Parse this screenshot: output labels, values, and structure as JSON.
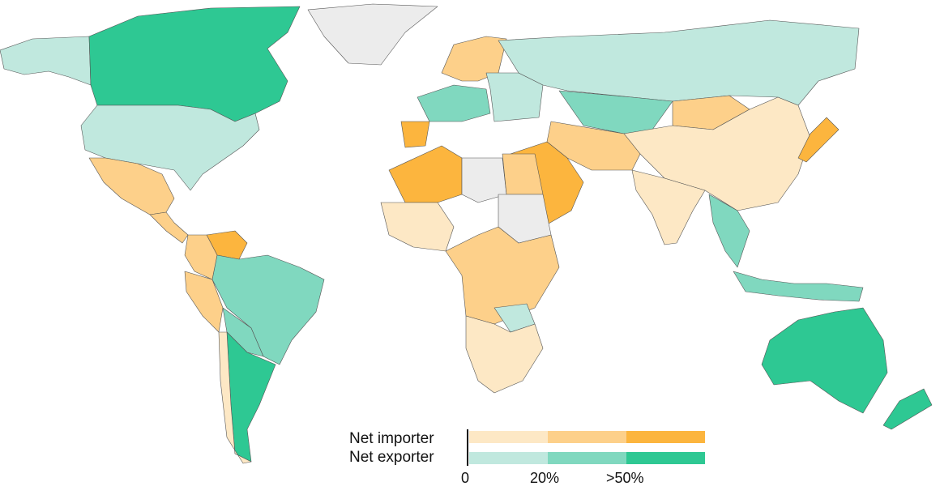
{
  "colors": {
    "importer": [
      "#fde8c5",
      "#fdd08a",
      "#fcb53e"
    ],
    "exporter": [
      "#c0e8de",
      "#80d8bf",
      "#2ec893"
    ],
    "no_data": "#ececec"
  },
  "legend": {
    "importer_label": "Net importer",
    "exporter_label": "Net exporter",
    "ticks": [
      "0",
      "20%",
      ">50%"
    ]
  },
  "chart_data": {
    "type": "choropleth",
    "title": "",
    "bins": [
      "0–20%",
      "20–50%",
      ">50%"
    ],
    "categories": [
      "Net importer",
      "Net exporter"
    ],
    "regions": [
      {
        "name": "alaska",
        "class": "exporter",
        "bin": 0
      },
      {
        "name": "canada",
        "class": "exporter",
        "bin": 2
      },
      {
        "name": "greenland",
        "class": "none",
        "bin": -1
      },
      {
        "name": "usa",
        "class": "exporter",
        "bin": 0
      },
      {
        "name": "mexico",
        "class": "importer",
        "bin": 1
      },
      {
        "name": "central-america",
        "class": "importer",
        "bin": 1
      },
      {
        "name": "venezuela",
        "class": "importer",
        "bin": 2
      },
      {
        "name": "colombia",
        "class": "importer",
        "bin": 1
      },
      {
        "name": "peru",
        "class": "importer",
        "bin": 1
      },
      {
        "name": "brazil",
        "class": "exporter",
        "bin": 1
      },
      {
        "name": "bolivia-paraguay",
        "class": "exporter",
        "bin": 1
      },
      {
        "name": "argentina",
        "class": "exporter",
        "bin": 2
      },
      {
        "name": "chile",
        "class": "importer",
        "bin": 0
      },
      {
        "name": "scandinavia",
        "class": "importer",
        "bin": 1
      },
      {
        "name": "western-europe",
        "class": "exporter",
        "bin": 1
      },
      {
        "name": "iberia",
        "class": "importer",
        "bin": 2
      },
      {
        "name": "eastern-europe",
        "class": "exporter",
        "bin": 0
      },
      {
        "name": "russia",
        "class": "exporter",
        "bin": 0
      },
      {
        "name": "kazakhstan",
        "class": "exporter",
        "bin": 1
      },
      {
        "name": "mongolia",
        "class": "importer",
        "bin": 1
      },
      {
        "name": "china",
        "class": "importer",
        "bin": 0
      },
      {
        "name": "india",
        "class": "importer",
        "bin": 0
      },
      {
        "name": "iran-central-asia",
        "class": "importer",
        "bin": 1
      },
      {
        "name": "saudi-arabia",
        "class": "importer",
        "bin": 2
      },
      {
        "name": "japan",
        "class": "importer",
        "bin": 2
      },
      {
        "name": "southeast-asia",
        "class": "exporter",
        "bin": 1
      },
      {
        "name": "indonesia",
        "class": "exporter",
        "bin": 1
      },
      {
        "name": "algeria",
        "class": "importer",
        "bin": 2
      },
      {
        "name": "libya",
        "class": "none",
        "bin": -1
      },
      {
        "name": "egypt",
        "class": "importer",
        "bin": 1
      },
      {
        "name": "west-africa",
        "class": "importer",
        "bin": 0
      },
      {
        "name": "central-africa",
        "class": "importer",
        "bin": 1
      },
      {
        "name": "sudan",
        "class": "none",
        "bin": -1
      },
      {
        "name": "southern-africa",
        "class": "importer",
        "bin": 0
      },
      {
        "name": "zambia",
        "class": "exporter",
        "bin": 0
      },
      {
        "name": "australia",
        "class": "exporter",
        "bin": 2
      },
      {
        "name": "new-zealand",
        "class": "exporter",
        "bin": 2
      }
    ]
  }
}
